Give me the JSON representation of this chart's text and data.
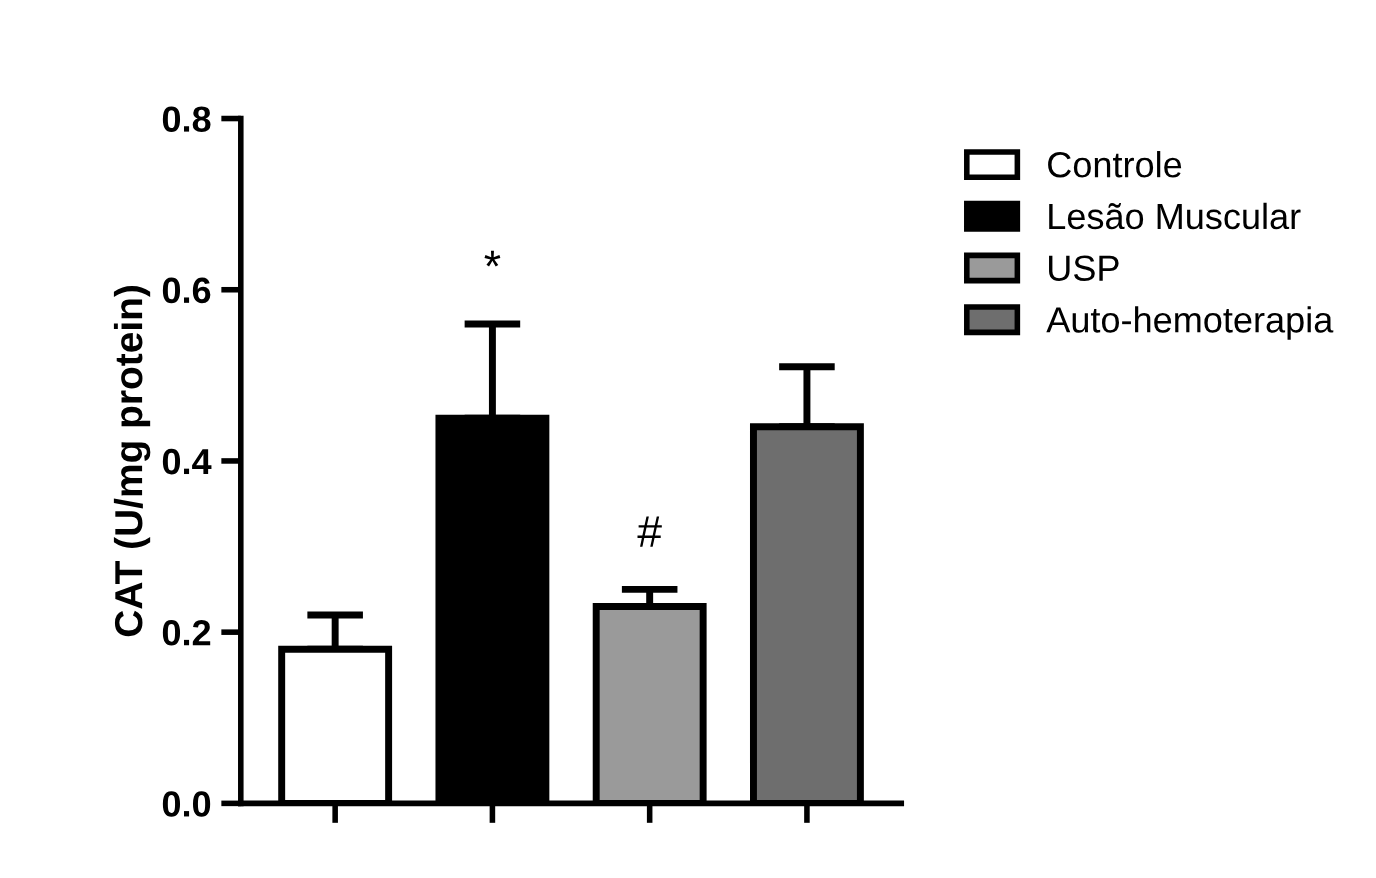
{
  "chart_data": {
    "type": "bar",
    "ylabel": "CAT (U/mg protein)",
    "categories": [
      null,
      null,
      null,
      null
    ],
    "series": [
      {
        "name": "Controle",
        "color": "#ffffff",
        "values": [
          0.18,
          null,
          null,
          null
        ],
        "errors": [
          0.04,
          null,
          null,
          null
        ]
      },
      {
        "name": "Lesão Muscular",
        "color": "#000000",
        "values": [
          null,
          0.45,
          null,
          null
        ],
        "errors": [
          null,
          0.11,
          null,
          null
        ]
      },
      {
        "name": "USP",
        "color": "#9a9a9a",
        "values": [
          null,
          null,
          0.23,
          null
        ],
        "errors": [
          null,
          null,
          0.02,
          null
        ]
      },
      {
        "name": "Auto-hemoterapia",
        "color": "#6e6e6e",
        "values": [
          null,
          null,
          null,
          0.44
        ],
        "errors": [
          null,
          null,
          null,
          0.07
        ]
      }
    ],
    "annotations": [
      "*",
      "#"
    ],
    "ylim": [
      0,
      0.8
    ],
    "yticks": [
      {
        "value": 0,
        "label": "0.0"
      },
      {
        "value": 0.2,
        "label": "0.2"
      },
      {
        "value": 0.4,
        "label": "0.4"
      },
      {
        "value": 0.6,
        "label": "0.6"
      },
      {
        "value": 0.8,
        "label": "0.8"
      }
    ],
    "grid": false,
    "legend": "right"
  }
}
